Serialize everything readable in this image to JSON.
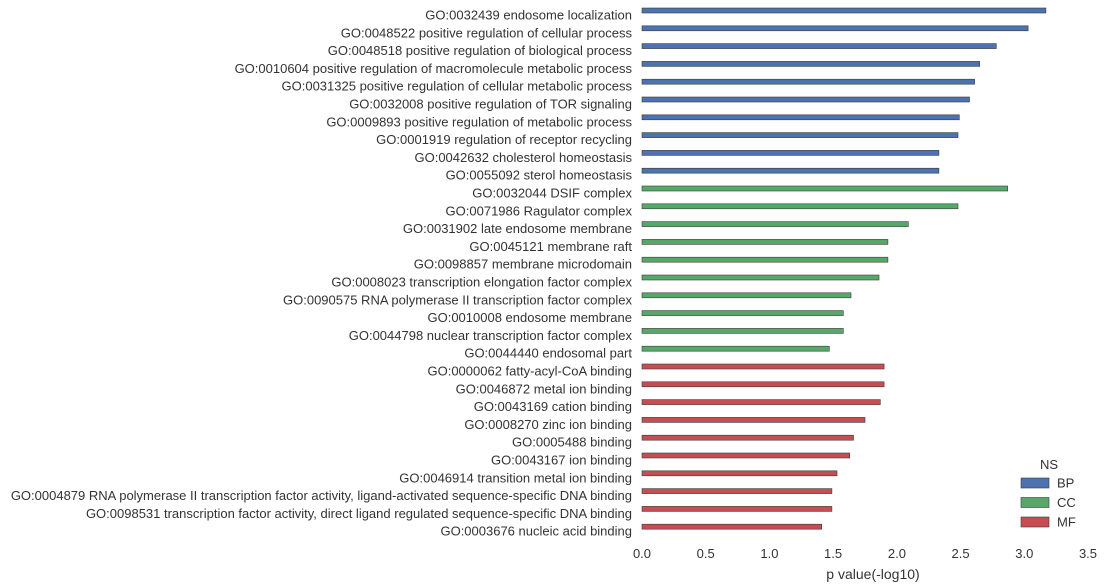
{
  "chart_data": {
    "type": "bar",
    "orientation": "horizontal",
    "title": "",
    "xlabel": "p value(-log10)",
    "ylabel": "",
    "xlim": [
      0,
      3.5
    ],
    "x_ticks": [
      "0.0",
      "0.5",
      "1.0",
      "1.5",
      "2.0",
      "2.5",
      "3.0",
      "3.5"
    ],
    "grid": false,
    "legend": {
      "title": "NS",
      "position": "bottom-right",
      "entries": [
        {
          "name": "BP",
          "color": "#4c72b0"
        },
        {
          "name": "CC",
          "color": "#55a868"
        },
        {
          "name": "MF",
          "color": "#c44e52"
        }
      ]
    },
    "categories": [
      "GO:0032439 endosome localization",
      "GO:0048522 positive regulation of cellular process",
      "GO:0048518 positive regulation of biological process",
      "GO:0010604 positive regulation of macromolecule metabolic process",
      "GO:0031325 positive regulation of cellular metabolic process",
      "GO:0032008 positive regulation of TOR signaling",
      "GO:0009893 positive regulation of metabolic process",
      "GO:0001919 regulation of receptor recycling",
      "GO:0042632 cholesterol homeostasis",
      "GO:0055092 sterol homeostasis",
      "GO:0032044 DSIF complex",
      "GO:0071986 Ragulator complex",
      "GO:0031902 late endosome membrane",
      "GO:0045121 membrane raft",
      "GO:0098857 membrane microdomain",
      "GO:0008023 transcription elongation factor complex",
      "GO:0090575 RNA polymerase II transcription factor complex",
      "GO:0010008 endosome membrane",
      "GO:0044798 nuclear transcription factor complex",
      "GO:0044440 endosomal part",
      "GO:0000062 fatty-acyl-CoA binding",
      "GO:0046872 metal ion binding",
      "GO:0043169 cation binding",
      "GO:0008270 zinc ion binding",
      "GO:0005488 binding",
      "GO:0043167 ion binding",
      "GO:0046914 transition metal ion binding",
      "GO:0004879 RNA polymerase II transcription factor activity, ligand-activated sequence-specific DNA binding",
      "GO:0098531 transcription factor activity, direct ligand regulated sequence-specific DNA binding",
      "GO:0003676 nucleic acid binding"
    ],
    "values": [
      3.17,
      3.03,
      2.78,
      2.65,
      2.61,
      2.57,
      2.49,
      2.48,
      2.33,
      2.33,
      2.87,
      2.48,
      2.09,
      1.93,
      1.93,
      1.86,
      1.64,
      1.58,
      1.58,
      1.47,
      1.9,
      1.9,
      1.87,
      1.75,
      1.66,
      1.63,
      1.53,
      1.49,
      1.49,
      1.41
    ],
    "groups": [
      "BP",
      "BP",
      "BP",
      "BP",
      "BP",
      "BP",
      "BP",
      "BP",
      "BP",
      "BP",
      "CC",
      "CC",
      "CC",
      "CC",
      "CC",
      "CC",
      "CC",
      "CC",
      "CC",
      "CC",
      "MF",
      "MF",
      "MF",
      "MF",
      "MF",
      "MF",
      "MF",
      "MF",
      "MF",
      "MF"
    ]
  }
}
